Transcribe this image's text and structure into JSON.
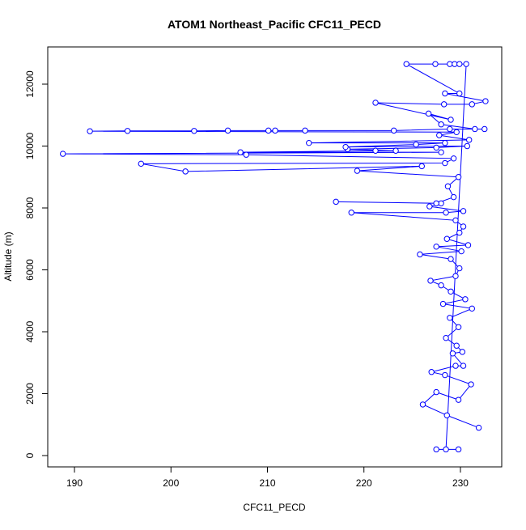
{
  "chart_data": {
    "type": "line",
    "markers": true,
    "title": "ATOM1 Northeast_Pacific CFC11_PECD",
    "x_label": "CFC11_PECD",
    "y_label": "Altitude (m)",
    "x": [
      231.9,
      228.6,
      226.1,
      227.5,
      229.8,
      231.1,
      228.4,
      227.0,
      229.5,
      230.3,
      229.2,
      230.2,
      229.6,
      228.5,
      229.8,
      228.9,
      231.2,
      228.2,
      230.5,
      229.0,
      228.0,
      226.9,
      229.5,
      229.9,
      229.0,
      225.8,
      230.1,
      227.5,
      230.8,
      228.6,
      229.9,
      230.3,
      229.5,
      218.7,
      228.5,
      230.3,
      226.8,
      228.0,
      217.1,
      227.5,
      229.3,
      228.7,
      229.8,
      219.3,
      226.0,
      201.5,
      196.9,
      228.4,
      229.3,
      207.8,
      188.8,
      228.0,
      207.2,
      221.2,
      223.3,
      218.3,
      227.5,
      230.7,
      218.1,
      225.4,
      228.4,
      214.3,
      230.9,
      227.8,
      229.6,
      191.6,
      195.5,
      202.4,
      205.9,
      210.1,
      210.8,
      213.9,
      223.1,
      228.9,
      232.5,
      231.5,
      228.0,
      226.7,
      229.0,
      221.2,
      228.3,
      231.2,
      232.6,
      228.4,
      229.9,
      224.4,
      227.4,
      228.9,
      229.4,
      229.9,
      230.6,
      228.5,
      227.5,
      229.8
    ],
    "series": [
      {
        "color": "#0000ff",
        "values": [
          900,
          1300,
          1650,
          2050,
          1800,
          2300,
          2600,
          2700,
          2900,
          2900,
          3300,
          3350,
          3550,
          3800,
          4150,
          4450,
          4750,
          4900,
          5050,
          5300,
          5500,
          5650,
          5800,
          6050,
          6350,
          6500,
          6600,
          6750,
          6800,
          7000,
          7200,
          7400,
          7600,
          7850,
          7850,
          7900,
          8050,
          8150,
          8200,
          8150,
          8350,
          8700,
          9000,
          9200,
          9350,
          9180,
          9430,
          9450,
          9600,
          9720,
          9750,
          9800,
          9800,
          9850,
          9850,
          9900,
          9950,
          10000,
          9970,
          10050,
          10100,
          10100,
          10200,
          10350,
          10450,
          10480,
          10490,
          10490,
          10500,
          10500,
          10500,
          10500,
          10500,
          10550,
          10550,
          10550,
          10700,
          11050,
          10850,
          11400,
          11350,
          11350,
          11450,
          11700,
          11700,
          12650,
          12650,
          12650,
          12650,
          12650,
          12650,
          200,
          200,
          200
        ]
      }
    ],
    "xlim": [
      187.23,
      234.28
    ],
    "ylim": [
      -366,
      13203
    ],
    "xticks": [
      190,
      200,
      210,
      220,
      230
    ],
    "yticks": [
      0,
      2000,
      4000,
      6000,
      8000,
      10000,
      12000
    ]
  }
}
